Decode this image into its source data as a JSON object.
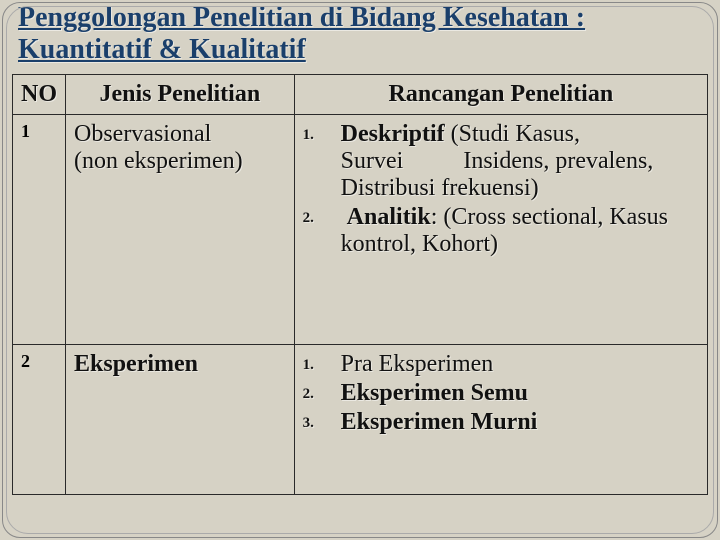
{
  "title": "Penggolongan Penelitian di Bidang Kesehatan : Kuantitatif & Kualitatif",
  "headers": {
    "no": "NO",
    "jenis": "Jenis Penelitian",
    "rancangan": "Rancangan Penelitian"
  },
  "rows": [
    {
      "no": "1",
      "jenis_line1": "Observasional",
      "jenis_line2": "(non eksperimen)",
      "rancangan": [
        {
          "bold": "Deskriptif",
          "rest": " (Studi Kasus, Survei          Insidens, prevalens, Distribusi frekuensi)"
        },
        {
          "bold": "Analitik",
          "rest": ":  (Cross sectional, Kasus kontrol, Kohort)"
        }
      ]
    },
    {
      "no": "2",
      "jenis_line1": "Eksperimen",
      "jenis_line2": "",
      "rancangan": [
        {
          "bold": "",
          "rest": "Pra Eksperimen"
        },
        {
          "bold": "Eksperimen Semu",
          "rest": ""
        },
        {
          "bold": "Eksperimen Murni",
          "rest": ""
        }
      ]
    }
  ],
  "colors": {
    "background": "#d6d2c5",
    "title": "#1a3f6b",
    "border": "#2a2a2a",
    "text": "#111111"
  }
}
